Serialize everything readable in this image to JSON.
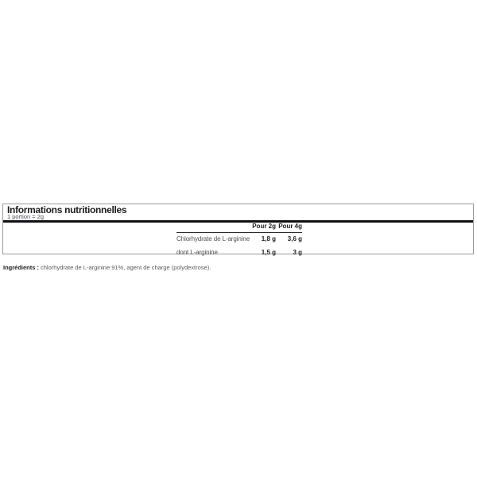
{
  "panel": {
    "title": "Informations nutritionnelles",
    "portion_note": "1 portion = 2g"
  },
  "table": {
    "columns": [
      "Pour 2g",
      "Pour 4g"
    ],
    "rows": [
      {
        "label": "Chlorhydrate de L-arginine",
        "per_2g": "1,8 g",
        "per_4g": "3,6 g"
      },
      {
        "label": "dont L-arginine",
        "per_2g": "1,5 g",
        "per_4g": "3 g"
      }
    ]
  },
  "ingredients": {
    "label": "Ingrédients :",
    "text": "chlorhydrate de L-arginine 91%, agent de charge (polydextrose)."
  },
  "colors": {
    "background": "#ffffff",
    "panel_border": "#9a9a9f",
    "heavy_rule": "#111114",
    "header_underline": "#2a2a2e",
    "text_dark": "#1d1d20",
    "text_gray": "#4f4f54"
  }
}
